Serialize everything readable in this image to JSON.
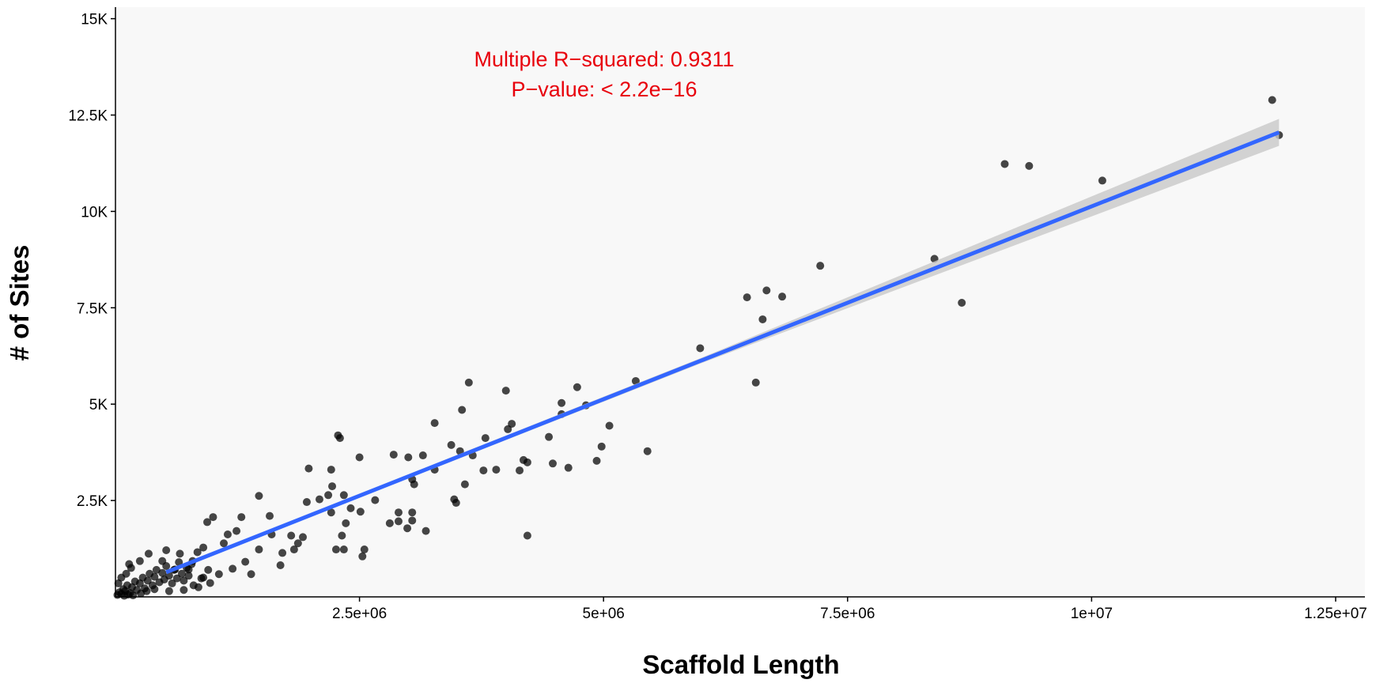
{
  "chart_data": {
    "type": "scatter",
    "x_label": "Scaffold Length",
    "y_label": "# of Sites",
    "annotations": [
      "Multiple R−squared: 0.9311",
      "P−value: < 2.2e−16"
    ],
    "annotation_color": "#e8000b",
    "color": "#000000",
    "x": [
      11850000,
      11920000,
      9110000,
      9360000,
      10110000,
      7220000,
      8390000,
      8670000,
      6470000,
      6670000,
      6830000,
      6630000,
      5990000,
      6560000,
      5330000,
      4730000,
      4570000,
      4820000,
      4570000,
      4000000,
      3620000,
      3550000,
      3790000,
      4060000,
      4020000,
      4440000,
      5060000,
      4980000,
      4930000,
      5450000,
      4640000,
      4480000,
      4180000,
      4220000,
      4140000,
      3900000,
      3770000,
      3660000,
      3530000,
      3440000,
      3270000,
      3270000,
      3580000,
      3470000,
      3490000,
      4220000,
      3040000,
      3060000,
      3150000,
      3000000,
      2850000,
      2500000,
      2280000,
      2300000,
      1980000,
      2210000,
      2220000,
      2340000,
      2180000,
      2090000,
      1960000,
      2660000,
      2410000,
      2510000,
      2360000,
      2210000,
      3040000,
      3040000,
      2900000,
      2900000,
      2810000,
      2990000,
      3180000,
      2550000,
      2530000,
      2320000,
      2340000,
      2260000,
      1470000,
      1290000,
      1580000,
      1000000,
      940000,
      1600000,
      1800000,
      1920000,
      1870000,
      1830000,
      1710000,
      1690000,
      1330000,
      1200000,
      1390000,
      1470000,
      1150000,
      1110000,
      1240000,
      900000,
      840000,
      790000,
      660000,
      520000,
      750000,
      1060000,
      970000,
      880000,
      610000,
      480000,
      340000,
      250000,
      20000,
      40000,
      60000,
      80000,
      100000,
      120000,
      150000,
      170000,
      200000,
      220000,
      250000,
      280000,
      300000,
      330000,
      350000,
      380000,
      400000,
      420000,
      450000,
      480000,
      500000,
      520000,
      550000,
      580000,
      600000,
      630000,
      650000,
      680000,
      700000,
      730000,
      750000,
      780000,
      800000,
      90000,
      130000,
      180000,
      260000,
      320000,
      400000,
      550000,
      700000,
      850000,
      900000,
      950000,
      30000,
      60000,
      110000,
      160000,
      140000
    ],
    "values": [
      12890,
      11980,
      11230,
      11180,
      10800,
      8590,
      8770,
      7630,
      7770,
      7950,
      7790,
      7200,
      6450,
      5560,
      5600,
      5440,
      5030,
      4970,
      4740,
      5350,
      5560,
      4850,
      4120,
      4490,
      4350,
      4150,
      4440,
      3900,
      3530,
      3780,
      3350,
      3460,
      3550,
      3490,
      3280,
      3300,
      3280,
      3670,
      3780,
      3940,
      4510,
      3300,
      2920,
      2530,
      2440,
      1590,
      3050,
      2920,
      3670,
      3620,
      3690,
      3620,
      4190,
      4120,
      3330,
      3300,
      2870,
      2640,
      2640,
      2530,
      2460,
      2510,
      2300,
      2210,
      1910,
      2190,
      2190,
      1980,
      2190,
      1960,
      1910,
      1780,
      1710,
      1230,
      1050,
      1590,
      1230,
      1230,
      2620,
      2070,
      2100,
      2070,
      1940,
      1620,
      1590,
      1550,
      1390,
      1230,
      1140,
      820,
      910,
      730,
      590,
      1230,
      1620,
      1390,
      1710,
      1280,
      1160,
      930,
      1120,
      1210,
      710,
      590,
      360,
      480,
      710,
      930,
      1120,
      930,
      50,
      120,
      80,
      200,
      150,
      300,
      100,
      250,
      400,
      180,
      350,
      500,
      220,
      420,
      600,
      300,
      520,
      700,
      380,
      620,
      450,
      800,
      550,
      350,
      700,
      480,
      900,
      600,
      420,
      750,
      550,
      850,
      300,
      30,
      60,
      40,
      90,
      150,
      200,
      150,
      180,
      250,
      500,
      700,
      350,
      500,
      600,
      750,
      850
    ],
    "fit": {
      "color": "#3366ff",
      "band_color": "#c8c8c8",
      "x": [
        520000,
        6000000,
        11920000
      ],
      "y": [
        640,
        6130,
        12050
      ],
      "lower": [
        600,
        6060,
        11700
      ],
      "upper": [
        680,
        6200,
        12400
      ]
    },
    "xlim": [
      0,
      12800000
    ],
    "xticks": [
      {
        "value": 2500000,
        "label": "2.5e+06"
      },
      {
        "value": 5000000,
        "label": "5e+06"
      },
      {
        "value": 7500000,
        "label": "7.5e+06"
      },
      {
        "value": 10000000,
        "label": "1e+07"
      },
      {
        "value": 12500000,
        "label": "1.25e+07"
      }
    ],
    "ylim": [
      0,
      15300
    ],
    "yticks": [
      {
        "value": 2500,
        "label": "2.5K"
      },
      {
        "value": 5000,
        "label": "5K"
      },
      {
        "value": 7500,
        "label": "7.5K"
      },
      {
        "value": 10000,
        "label": "10K"
      },
      {
        "value": 12500,
        "label": "12.5K"
      },
      {
        "value": 15000,
        "label": "15K"
      }
    ]
  }
}
